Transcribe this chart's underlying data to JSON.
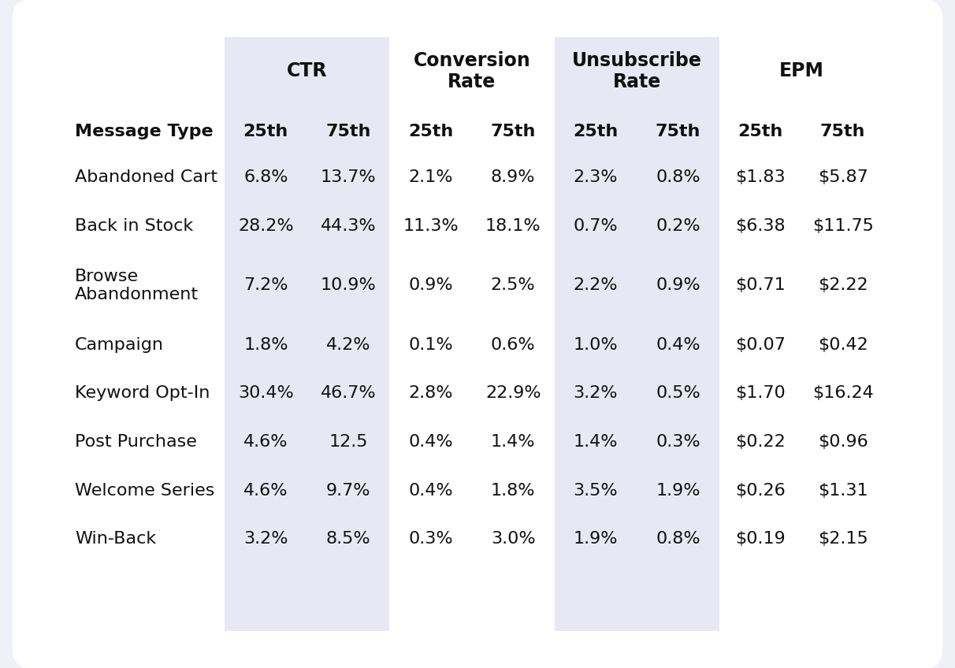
{
  "col_groups": [
    {
      "label": "CTR",
      "cols": 2,
      "bg": "#e8e8f4"
    },
    {
      "label": "Conversion\nRate",
      "cols": 2,
      "bg": "#ffffff"
    },
    {
      "label": "Unsubscribe\nRate",
      "cols": 2,
      "bg": "#e8e8f4"
    },
    {
      "label": "EPM",
      "cols": 2,
      "bg": "#ffffff"
    }
  ],
  "subheader_labels": [
    "25th",
    "75th",
    "25th",
    "75th",
    "25th",
    "75th",
    "25th",
    "75th"
  ],
  "row_label_header": "Message Type",
  "rows": [
    {
      "label": "Abandoned Cart",
      "values": [
        "6.8%",
        "13.7%",
        "2.1%",
        "8.9%",
        "2.3%",
        "0.8%",
        "$1.83",
        "$5.87"
      ],
      "multiline": false
    },
    {
      "label": "Back in Stock",
      "values": [
        "28.2%",
        "44.3%",
        "11.3%",
        "18.1%",
        "0.7%",
        "0.2%",
        "$6.38",
        "$11.75"
      ],
      "multiline": false
    },
    {
      "label": "Browse\nAbandonment",
      "values": [
        "7.2%",
        "10.9%",
        "0.9%",
        "2.5%",
        "2.2%",
        "0.9%",
        "$0.71",
        "$2.22"
      ],
      "multiline": true
    },
    {
      "label": "Campaign",
      "values": [
        "1.8%",
        "4.2%",
        "0.1%",
        "0.6%",
        "1.0%",
        "0.4%",
        "$0.07",
        "$0.42"
      ],
      "multiline": false
    },
    {
      "label": "Keyword Opt-In",
      "values": [
        "30.4%",
        "46.7%",
        "2.8%",
        "22.9%",
        "3.2%",
        "0.5%",
        "$1.70",
        "$16.24"
      ],
      "multiline": false
    },
    {
      "label": "Post Purchase",
      "values": [
        "4.6%",
        "12.5",
        "0.4%",
        "1.4%",
        "1.4%",
        "0.3%",
        "$0.22",
        "$0.96"
      ],
      "multiline": false
    },
    {
      "label": "Welcome Series",
      "values": [
        "4.6%",
        "9.7%",
        "0.4%",
        "1.8%",
        "3.5%",
        "1.9%",
        "$0.26",
        "$1.31"
      ],
      "multiline": false
    },
    {
      "label": "Win-Back",
      "values": [
        "3.2%",
        "8.5%",
        "0.3%",
        "3.0%",
        "1.9%",
        "0.8%",
        "$0.19",
        "$2.15"
      ],
      "multiline": false
    }
  ],
  "outer_bg": "#f0f0f8",
  "card_bg": "#ffffff",
  "col_bg_alt": "#e8e8f4",
  "text_color": "#111111",
  "header_font_size": 17,
  "subheader_font_size": 16,
  "row_font_size": 16,
  "label_font_size": 16
}
